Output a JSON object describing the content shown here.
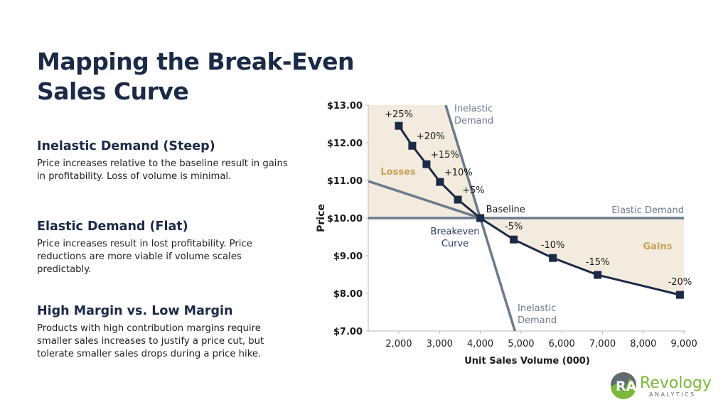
{
  "title_line1": "Mapping the Break-Even",
  "title_line2": "Sales Curve",
  "sections": [
    {
      "heading": "Inelastic Demand (Steep)",
      "text": "Price increases relative to the baseline result in gains in profitability. Loss of volume is minimal."
    },
    {
      "heading": "Elastic Demand (Flat)",
      "text": "Price increases result in lost profitability. Price reductions are more viable if volume scales predictably."
    },
    {
      "heading": "High Margin vs. Low Margin",
      "text": "Products with high contribution margins require smaller sales increases to justify a price cut, but tolerate smaller sales drops during a price hike."
    }
  ],
  "chart_data": {
    "type": "line",
    "xlabel": "Unit Sales Volume (000)",
    "ylabel": "Price",
    "xlim": [
      1250,
      9050
    ],
    "ylim": [
      7,
      13
    ],
    "x_ticks": [
      2000,
      3000,
      4000,
      5000,
      6000,
      7000,
      8000,
      9000
    ],
    "x_tick_labels": [
      "2,000",
      "3,000",
      "4,000",
      "5,000",
      "6,000",
      "7,000",
      "8,000",
      "9,000"
    ],
    "y_ticks": [
      7,
      8,
      9,
      10,
      11,
      12,
      13
    ],
    "y_tick_labels": [
      "$7.00",
      "$8.00",
      "$9.00",
      "$10.00",
      "$11.00",
      "$12.00",
      "$13.00"
    ],
    "breakeven_curve": {
      "points": [
        {
          "label": "+25%",
          "x": 2000,
          "y": 12.45
        },
        {
          "label": "+20%",
          "x": 2330,
          "y": 11.92
        },
        {
          "label": "+15%",
          "x": 2680,
          "y": 11.43
        },
        {
          "label": "+10%",
          "x": 3010,
          "y": 10.96
        },
        {
          "label": "+5%",
          "x": 3450,
          "y": 10.49
        },
        {
          "label": "Baseline",
          "x": 4000,
          "y": 10.0
        },
        {
          "label": "-5%",
          "x": 4820,
          "y": 9.43
        },
        {
          "label": "-10%",
          "x": 5780,
          "y": 8.94
        },
        {
          "label": "-15%",
          "x": 6880,
          "y": 8.49
        },
        {
          "label": "-20%",
          "x": 8900,
          "y": 7.96
        }
      ]
    },
    "reference_lines": [
      {
        "name": "Elastic Demand",
        "from": [
          1250,
          10
        ],
        "to": [
          9000,
          10
        ]
      },
      {
        "name": "Inelastic Demand",
        "from": [
          3150,
          13
        ],
        "to": [
          4850,
          7
        ]
      },
      {
        "name": "",
        "from": [
          1250,
          10.98
        ],
        "to": [
          4000,
          10
        ]
      }
    ],
    "annotations": {
      "losses": "Losses",
      "gains": "Gains",
      "breakeven": [
        "Breakeven",
        "Curve"
      ],
      "inelastic_top": [
        "Inelastic",
        "Demand"
      ],
      "inelastic_bottom": [
        "Inelastic",
        "Demand"
      ],
      "elastic": "Elastic Demand"
    },
    "colors": {
      "curve": "#1b2a47",
      "reference": "#6b7a8c",
      "fill": "#f3ebdd",
      "region_label": "#c9a25a"
    }
  },
  "logo": {
    "text": "Revology",
    "sub": "ANALYTICS",
    "mark": "RA"
  }
}
